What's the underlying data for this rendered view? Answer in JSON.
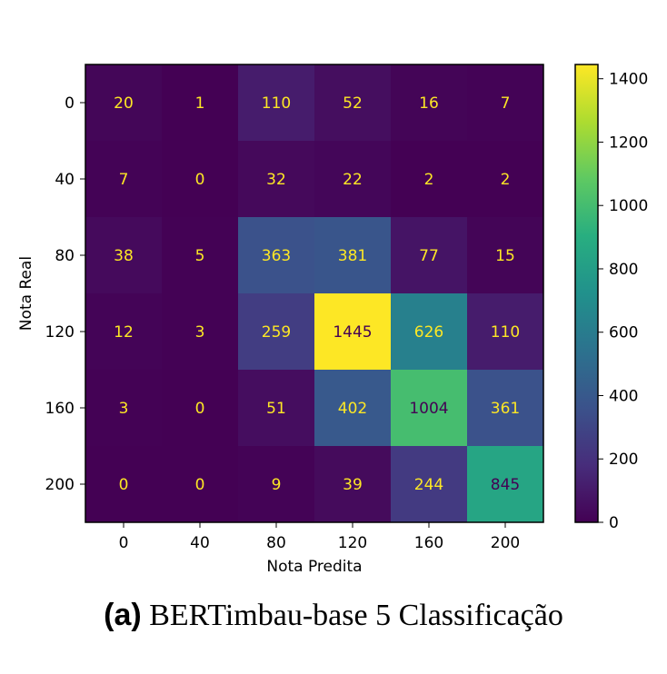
{
  "chart_data": {
    "type": "heatmap",
    "xlabel": "Nota Predita",
    "ylabel": "Nota Real",
    "x_categories": [
      "0",
      "40",
      "80",
      "120",
      "160",
      "200"
    ],
    "y_categories": [
      "0",
      "40",
      "80",
      "120",
      "160",
      "200"
    ],
    "values": [
      [
        20,
        1,
        110,
        52,
        16,
        7
      ],
      [
        7,
        0,
        32,
        22,
        2,
        2
      ],
      [
        38,
        5,
        363,
        381,
        77,
        15
      ],
      [
        12,
        3,
        259,
        1445,
        626,
        110
      ],
      [
        3,
        0,
        51,
        402,
        1004,
        361
      ],
      [
        0,
        0,
        9,
        39,
        244,
        845
      ]
    ],
    "colormap": "viridis",
    "color_range": [
      0,
      1445
    ],
    "colorbar_ticks": [
      0,
      200,
      400,
      600,
      800,
      1000,
      1200,
      1400
    ],
    "colorbar_labels": [
      "0",
      "200",
      "400",
      "600",
      "800",
      "1000",
      "1200",
      "1400"
    ],
    "label_color_light": "#fde725",
    "label_color_dark": "#440154"
  },
  "caption": {
    "tag": "(a)",
    "text": "BERTimbau-base 5 Classificação"
  }
}
